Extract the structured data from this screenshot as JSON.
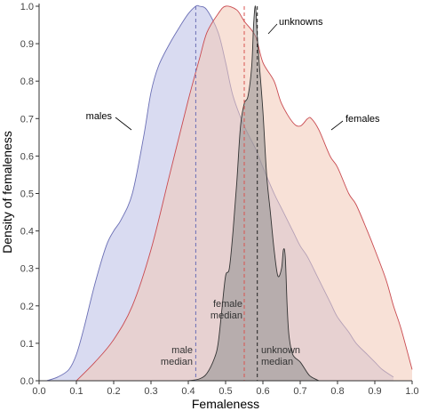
{
  "chart_data": {
    "type": "area",
    "title": "",
    "xlabel": "Femaleness",
    "ylabel": "Density of femaleness",
    "xlim": [
      0,
      1
    ],
    "ylim": [
      0,
      1
    ],
    "x_ticks": [
      "0.0",
      "0.1",
      "0.2",
      "0.3",
      "0.4",
      "0.5",
      "0.6",
      "0.7",
      "0.8",
      "0.9",
      "1.0"
    ],
    "y_ticks": [
      "0.0",
      "0.1",
      "0.2",
      "0.3",
      "0.4",
      "0.5",
      "0.6",
      "0.7",
      "0.8",
      "0.9",
      "1.0"
    ],
    "grid": false,
    "series": [
      {
        "name": "males",
        "fill": "#b9bde6",
        "stroke": "#6b6fb5",
        "x": [
          0.02,
          0.05,
          0.08,
          0.1,
          0.12,
          0.15,
          0.18,
          0.2,
          0.22,
          0.25,
          0.28,
          0.3,
          0.32,
          0.35,
          0.38,
          0.4,
          0.42,
          0.43,
          0.45,
          0.48,
          0.5,
          0.52,
          0.55,
          0.58,
          0.6,
          0.63,
          0.65,
          0.68,
          0.7,
          0.72,
          0.75,
          0.78,
          0.8,
          0.83,
          0.85,
          0.88,
          0.9,
          0.92,
          0.95
        ],
        "y": [
          0.0,
          0.01,
          0.03,
          0.07,
          0.14,
          0.26,
          0.36,
          0.4,
          0.43,
          0.5,
          0.65,
          0.77,
          0.84,
          0.9,
          0.95,
          0.98,
          1.0,
          1.0,
          0.99,
          0.93,
          0.85,
          0.76,
          0.68,
          0.62,
          0.57,
          0.5,
          0.46,
          0.4,
          0.36,
          0.33,
          0.27,
          0.21,
          0.17,
          0.13,
          0.1,
          0.07,
          0.05,
          0.03,
          0.01
        ]
      },
      {
        "name": "females",
        "fill": "#f3c9b7",
        "stroke": "#c94a50",
        "x": [
          0.1,
          0.15,
          0.2,
          0.25,
          0.3,
          0.35,
          0.4,
          0.43,
          0.45,
          0.48,
          0.5,
          0.53,
          0.55,
          0.58,
          0.6,
          0.63,
          0.65,
          0.68,
          0.7,
          0.72,
          0.73,
          0.75,
          0.78,
          0.8,
          0.83,
          0.85,
          0.88,
          0.9,
          0.93,
          0.95,
          0.97,
          1.0
        ],
        "y": [
          0.0,
          0.05,
          0.11,
          0.2,
          0.35,
          0.55,
          0.75,
          0.86,
          0.93,
          0.98,
          1.0,
          0.99,
          0.96,
          0.92,
          0.85,
          0.8,
          0.74,
          0.69,
          0.68,
          0.7,
          0.7,
          0.67,
          0.6,
          0.57,
          0.5,
          0.47,
          0.4,
          0.35,
          0.27,
          0.2,
          0.14,
          0.03
        ]
      },
      {
        "name": "unknowns",
        "fill": "#8f8f8f",
        "stroke": "#333333",
        "x": [
          0.4,
          0.43,
          0.45,
          0.47,
          0.48,
          0.49,
          0.5,
          0.51,
          0.52,
          0.53,
          0.54,
          0.55,
          0.56,
          0.57,
          0.575,
          0.58,
          0.585,
          0.59,
          0.6,
          0.61,
          0.62,
          0.63,
          0.64,
          0.65,
          0.655,
          0.66,
          0.665,
          0.67,
          0.68,
          0.7,
          0.72,
          0.73,
          0.75
        ],
        "y": [
          0.0,
          0.005,
          0.02,
          0.06,
          0.1,
          0.19,
          0.28,
          0.3,
          0.4,
          0.53,
          0.68,
          0.74,
          0.76,
          0.84,
          0.95,
          1.0,
          0.92,
          0.85,
          0.72,
          0.55,
          0.45,
          0.35,
          0.28,
          0.3,
          0.35,
          0.33,
          0.2,
          0.12,
          0.07,
          0.05,
          0.02,
          0.01,
          0.0
        ]
      }
    ],
    "medians": [
      {
        "name": "male median",
        "x": 0.42,
        "color": "#6b6fb5"
      },
      {
        "name": "female median",
        "x": 0.55,
        "color": "#d9534f"
      },
      {
        "name": "unknown median",
        "x": 0.585,
        "color": "#222222"
      }
    ],
    "annotations": {
      "males": "males",
      "females": "females",
      "unknowns": "unknowns",
      "male_median": [
        "male",
        "median"
      ],
      "female_median": [
        "female",
        "median"
      ],
      "unknown_median": [
        "unknown",
        "median"
      ]
    }
  }
}
